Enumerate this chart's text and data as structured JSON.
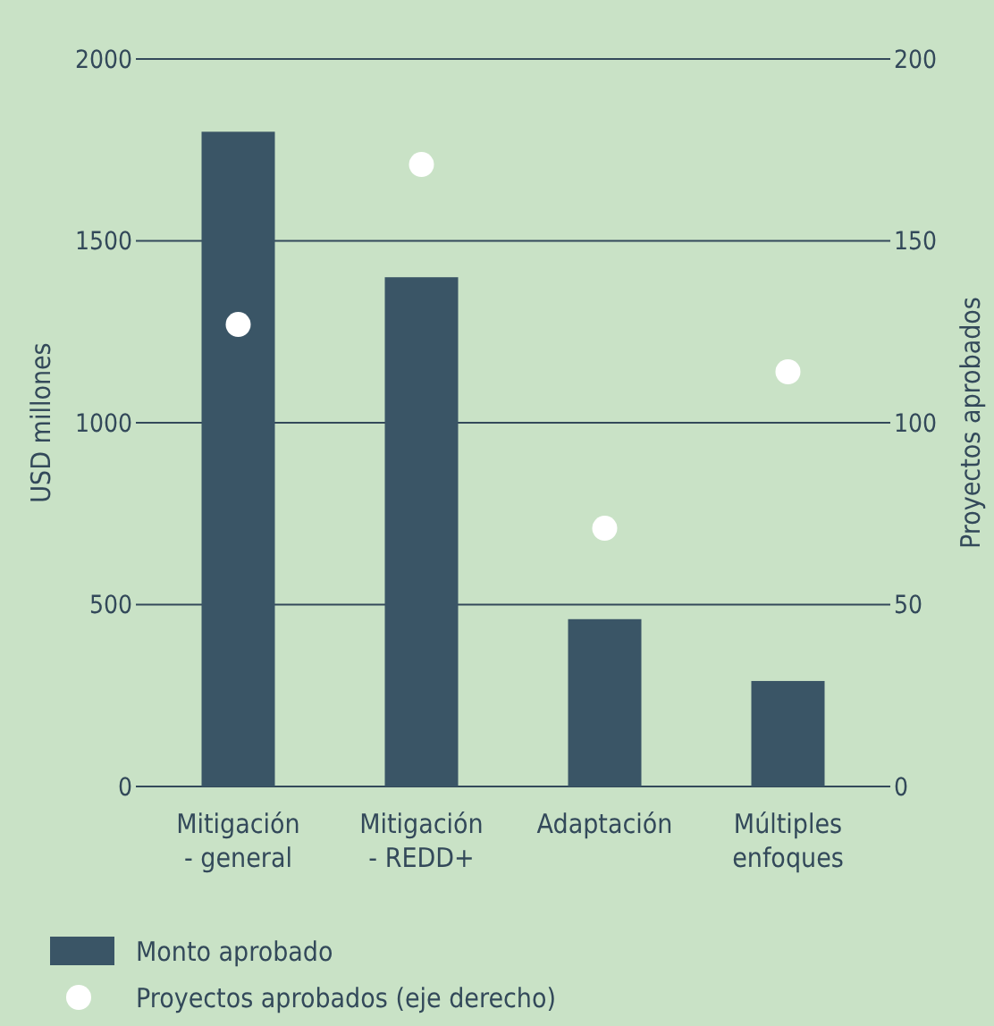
{
  "chart_data": {
    "type": "bar",
    "ylabel": "USD millones",
    "y2label": "Proyectos aprobados",
    "categories": [
      "Mitigación - general",
      "Mitigación - REDD+",
      "Adaptación",
      "Múltiples enfoques"
    ],
    "series": [
      {
        "name": "Monto aprobado",
        "color": "#3a5566",
        "values": [
          1800,
          1400,
          460,
          290
        ]
      },
      {
        "name": "Proyectos aprobados (eje derecho)",
        "type": "scatter",
        "axis": "y2",
        "color": "#ffffff",
        "values": [
          127,
          171,
          71,
          114
        ]
      }
    ],
    "ylim": [
      0,
      2000
    ],
    "yticks": [
      0,
      500,
      1000,
      1500,
      2000
    ],
    "y2lim": [
      0,
      200
    ],
    "y2ticks": [
      0,
      50,
      100,
      150,
      200
    ],
    "grid": "y",
    "legend": "bottom",
    "marker": "circle"
  }
}
